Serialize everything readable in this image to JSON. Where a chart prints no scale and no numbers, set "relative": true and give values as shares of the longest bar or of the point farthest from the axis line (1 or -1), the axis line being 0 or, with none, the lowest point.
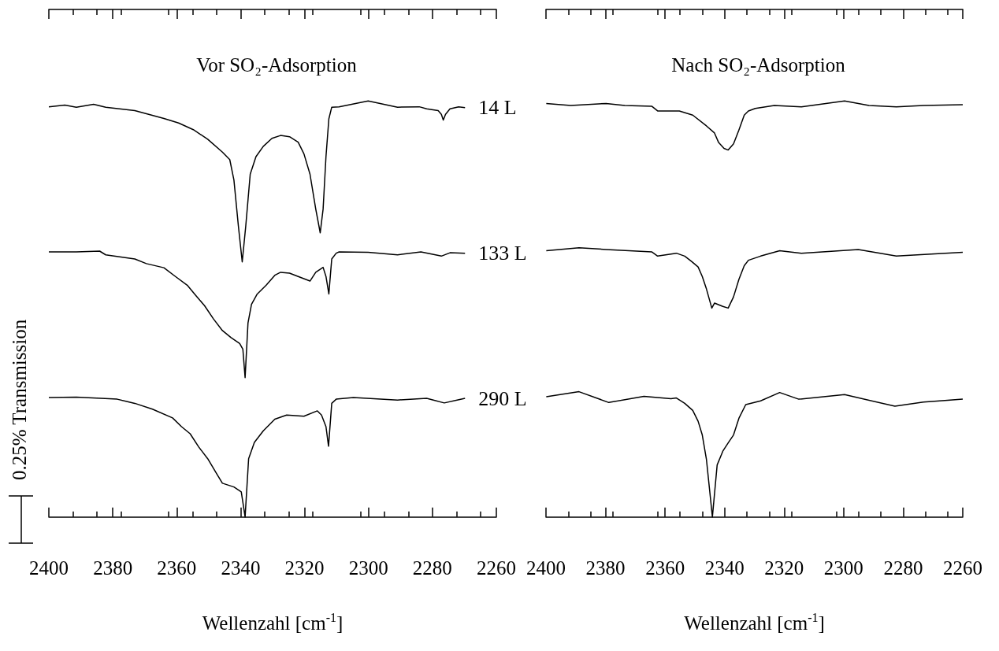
{
  "chart_data": [
    {
      "type": "line",
      "title": "Vor SO₂-Adsorption",
      "xlabel": "Wellenzahl [cm$^{-1}$]",
      "ylabel": "0.25% Transmission",
      "relative": true,
      "marker": "none",
      "xlim": [
        2400,
        2260
      ],
      "xticks": [
        2400,
        2380,
        2360,
        2340,
        2320,
        2300,
        2280,
        2260
      ],
      "series": [
        {
          "name": "14 L",
          "color": "#000000",
          "x": [
            2400.0,
            2395.0,
            2391.4,
            2386.0,
            2382.2,
            2373.1,
            2364.0,
            2359.4,
            2354.8,
            2350.3,
            2345.7,
            2343.4,
            2342.1,
            2340.7,
            2339.5,
            2338.4,
            2337.0,
            2335.2,
            2332.9,
            2330.2,
            2327.5,
            2324.7,
            2322.0,
            2320.2,
            2318.3,
            2316.5,
            2315.1,
            2314.2,
            2313.3,
            2312.4,
            2311.5,
            2309.2,
            2300.1,
            2290.9,
            2284.1,
            2281.8,
            2278.2,
            2277.2,
            2276.6,
            2275.9,
            2274.5,
            2271.8,
            2269.8
          ],
          "values": [
            0.986,
            0.99,
            0.985,
            0.992,
            0.985,
            0.977,
            0.958,
            0.947,
            0.931,
            0.908,
            0.877,
            0.859,
            0.81,
            0.699,
            0.613,
            0.699,
            0.824,
            0.866,
            0.891,
            0.91,
            0.917,
            0.914,
            0.901,
            0.873,
            0.824,
            0.74,
            0.683,
            0.74,
            0.866,
            0.957,
            0.985,
            0.986,
            1,
            0.985,
            0.986,
            0.981,
            0.977,
            0.968,
            0.954,
            0.968,
            0.981,
            0.986,
            0.984
          ]
        },
        {
          "name": "133 L",
          "color": "#000000",
          "x": [
            2400.0,
            2391.4,
            2384.1,
            2382.2,
            2373.1,
            2369.5,
            2364.0,
            2360.4,
            2356.7,
            2354.0,
            2351.3,
            2348.5,
            2345.7,
            2343.0,
            2340.3,
            2339.3,
            2338.6,
            2337.7,
            2336.6,
            2334.8,
            2332.0,
            2329.3,
            2327.5,
            2324.7,
            2322.0,
            2318.3,
            2316.5,
            2314.2,
            2313.3,
            2312.4,
            2311.5,
            2310.1,
            2309.2,
            2300.1,
            2290.9,
            2283.6,
            2277.2,
            2274.5,
            2269.8
          ],
          "values": [
            0.637,
            0.637,
            0.639,
            0.63,
            0.62,
            0.609,
            0.599,
            0.578,
            0.557,
            0.532,
            0.508,
            0.476,
            0.448,
            0.431,
            0.417,
            0.403,
            0.335,
            0.466,
            0.511,
            0.536,
            0.557,
            0.581,
            0.588,
            0.586,
            0.578,
            0.567,
            0.588,
            0.6,
            0.578,
            0.536,
            0.62,
            0.634,
            0.637,
            0.636,
            0.63,
            0.637,
            0.627,
            0.635,
            0.634
          ]
        },
        {
          "name": "290 L",
          "color": "#000000",
          "x": [
            2400.0,
            2391.4,
            2378.6,
            2373.1,
            2367.6,
            2361.3,
            2358.5,
            2355.8,
            2353.1,
            2350.3,
            2347.6,
            2345.7,
            2342.1,
            2339.8,
            2338.6,
            2337.5,
            2335.7,
            2332.9,
            2329.3,
            2325.6,
            2320.2,
            2316.0,
            2314.7,
            2313.3,
            2312.5,
            2311.5,
            2310.1,
            2304.7,
            2290.9,
            2281.8,
            2276.3,
            2269.8
          ],
          "values": [
            0.287,
            0.288,
            0.283,
            0.273,
            0.259,
            0.238,
            0.217,
            0.2,
            0.168,
            0.14,
            0.105,
            0.081,
            0.072,
            0.06,
            0,
            0.14,
            0.179,
            0.207,
            0.235,
            0.245,
            0.242,
            0.255,
            0.245,
            0.217,
            0.17,
            0.273,
            0.283,
            0.287,
            0.281,
            0.285,
            0.274,
            0.285
          ]
        }
      ]
    },
    {
      "type": "line",
      "title": "Nach SO₂-Adsorption",
      "xlabel": "Wellenzahl [cm$^{-1}$]",
      "relative": true,
      "marker": "none",
      "xlim": [
        2400,
        2260
      ],
      "xticks": [
        2400,
        2380,
        2360,
        2340,
        2320,
        2300,
        2280,
        2260
      ],
      "series": [
        {
          "color": "#000000",
          "x": [
            2399.9,
            2391.7,
            2379.8,
            2373.5,
            2364.4,
            2362.5,
            2355.2,
            2350.7,
            2346.1,
            2343.4,
            2342.0,
            2340.2,
            2338.8,
            2337.0,
            2335.2,
            2333.4,
            2332.0,
            2329.7,
            2323.3,
            2314.2,
            2299.7,
            2291.5,
            2282.3,
            2273.2,
            2260.0
          ],
          "values": [
            0.994,
            0.989,
            0.994,
            0.989,
            0.987,
            0.976,
            0.976,
            0.966,
            0.94,
            0.923,
            0.9,
            0.886,
            0.882,
            0.897,
            0.93,
            0.966,
            0.976,
            0.982,
            0.989,
            0.986,
            1,
            0.989,
            0.986,
            0.989,
            0.991
          ]
        },
        {
          "color": "#000000",
          "x": [
            2399.9,
            2388.9,
            2379.8,
            2364.4,
            2362.5,
            2356.2,
            2353.4,
            2351.1,
            2348.9,
            2347.5,
            2346.1,
            2344.3,
            2343.4,
            2340.6,
            2338.8,
            2337.0,
            2335.2,
            2333.4,
            2332.0,
            2327.9,
            2321.5,
            2314.2,
            2295.1,
            2282.3,
            2260.0
          ],
          "values": [
            0.64,
            0.647,
            0.643,
            0.637,
            0.627,
            0.634,
            0.627,
            0.614,
            0.601,
            0.578,
            0.548,
            0.502,
            0.514,
            0.506,
            0.502,
            0.529,
            0.571,
            0.604,
            0.617,
            0.627,
            0.64,
            0.634,
            0.643,
            0.627,
            0.636
          ]
        },
        {
          "color": "#000000",
          "x": [
            2399.9,
            2388.9,
            2378.9,
            2367.1,
            2358.0,
            2356.2,
            2353.4,
            2350.7,
            2348.9,
            2347.5,
            2346.1,
            2344.1,
            2342.5,
            2340.6,
            2338.8,
            2337.0,
            2335.2,
            2332.9,
            2327.9,
            2321.5,
            2315.1,
            2299.7,
            2282.8,
            2273.2,
            2260.0
          ],
          "values": [
            0.289,
            0.301,
            0.275,
            0.29,
            0.284,
            0.286,
            0.273,
            0.256,
            0.23,
            0.197,
            0.138,
            0,
            0.125,
            0.158,
            0.178,
            0.197,
            0.237,
            0.27,
            0.279,
            0.299,
            0.283,
            0.294,
            0.266,
            0.276,
            0.283
          ]
        }
      ]
    }
  ]
}
